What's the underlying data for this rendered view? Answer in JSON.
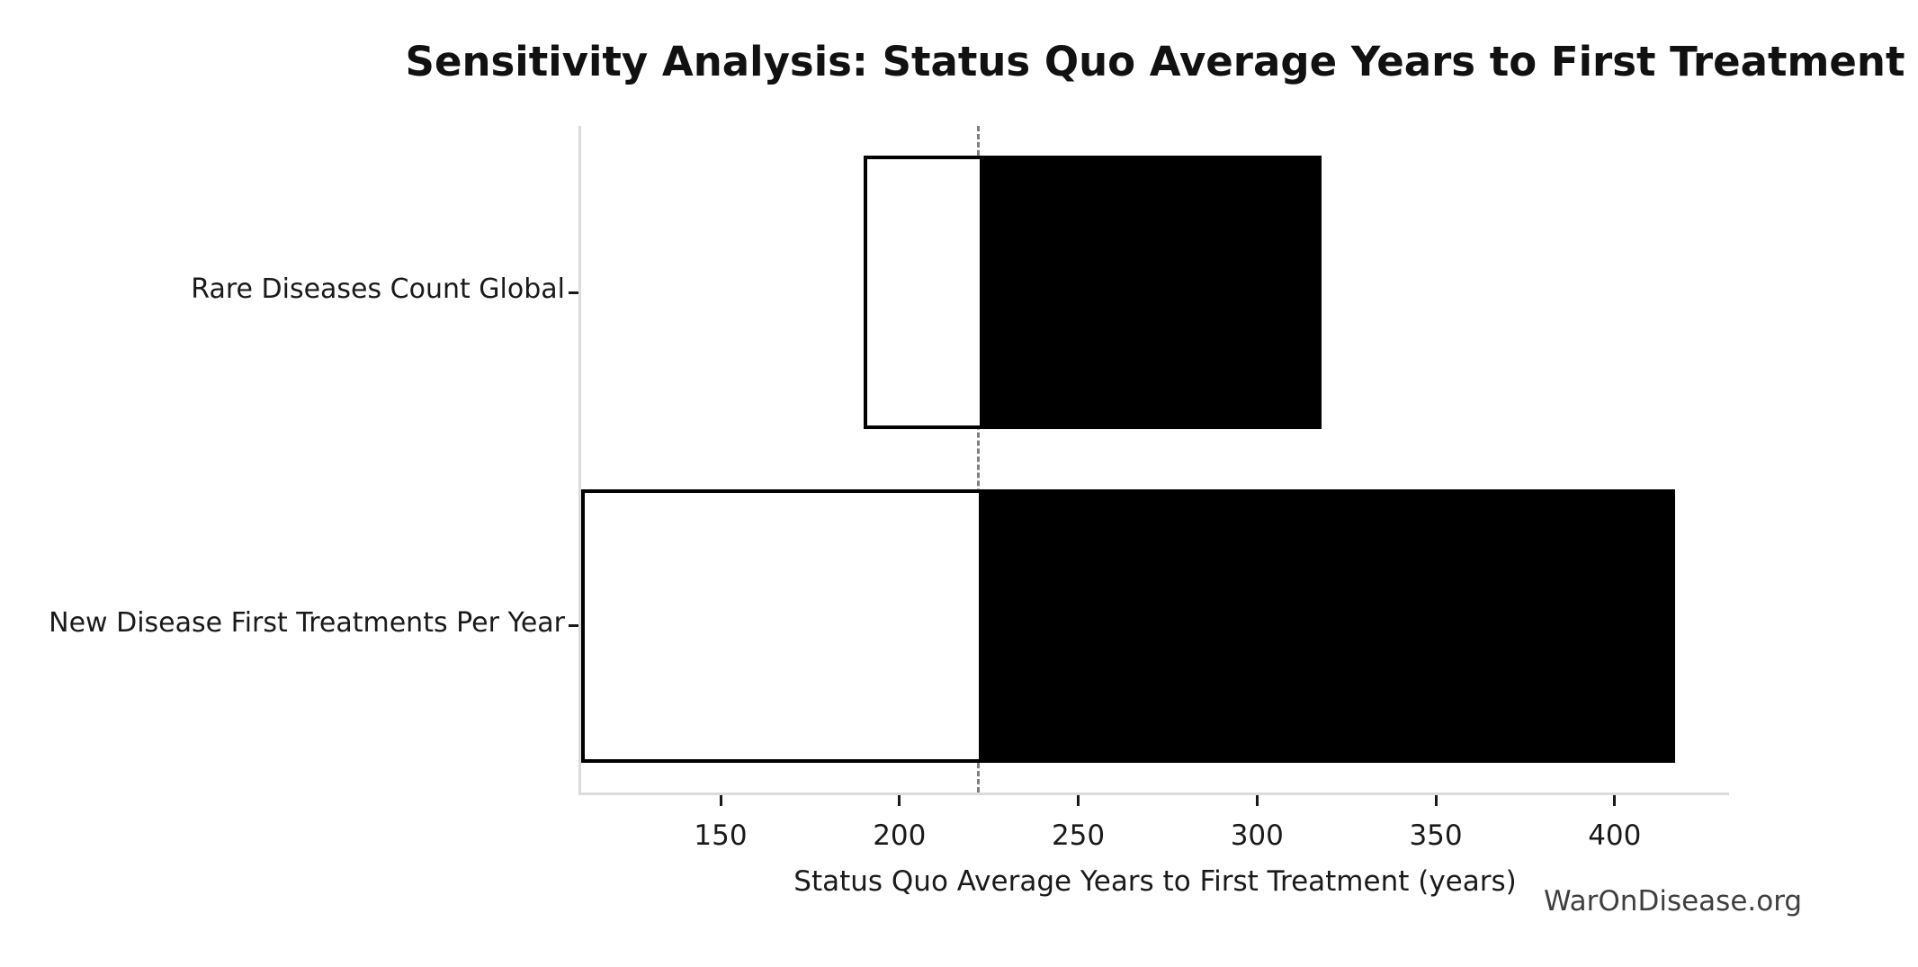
{
  "title": "Sensitivity Analysis: Status Quo Average Years to First Treatment",
  "watermark": "WarOnDisease.org",
  "chart_data": {
    "type": "bar",
    "subtype": "tornado-sensitivity-horizontal",
    "title": "Sensitivity Analysis: Status Quo Average Years to First Treatment",
    "xlabel": "Status Quo Average Years to First Treatment (years)",
    "ylabel": "",
    "categories": [
      "Rare Diseases Count Global",
      "New Disease First Treatments Per Year"
    ],
    "series": [
      {
        "name": "Rare Diseases Count Global",
        "low": 190,
        "high": 318
      },
      {
        "name": "New Disease First Treatments Per Year",
        "low": 111,
        "high": 417
      }
    ],
    "base_value": 222,
    "xlim": [
      111,
      432
    ],
    "x_ticks": [
      150,
      200,
      250,
      300,
      350,
      400
    ],
    "grid": false,
    "legend": false,
    "bar_height_frac": 0.41,
    "colors": {
      "fill_below_base": "#ffffff",
      "fill_above_base": "#000000",
      "bar_edge": "#000000",
      "baseline_dash": "#7f7f7f",
      "spine": "#dcdcdc",
      "tick": "#1a1a1a",
      "watermark": "#3f3f3f"
    }
  }
}
